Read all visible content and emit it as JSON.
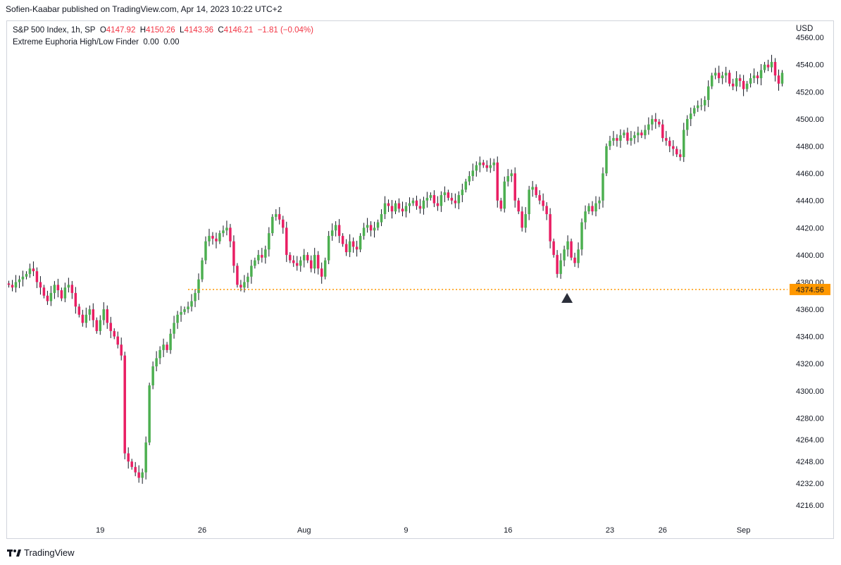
{
  "publisher_line": "Sofien-Kaabar published on TradingView.com, Apr 14, 2023 10:22 UTC+2",
  "legend": {
    "symbol": "S&P 500 Index, 1h, SP",
    "o_label": "O",
    "o_value": "4147.92",
    "h_label": "H",
    "h_value": "4150.26",
    "l_label": "L",
    "l_value": "4143.36",
    "c_label": "C",
    "c_value": "4146.21",
    "change": "−1.81 (−0.04%)",
    "indicator": "Extreme Euphoria High/Low Finder",
    "indicator_v1": "0.00",
    "indicator_v2": "0.00"
  },
  "currency": "USD",
  "brand": {
    "name": "TradingView",
    "icon": "tradingview-logo-icon"
  },
  "colors": {
    "up": "#4caf50",
    "down": "#e91e63",
    "level": "#ff9800",
    "marker": "#2a2e39"
  },
  "chart_data": {
    "type": "candlestick",
    "title": "",
    "xlabel": "",
    "ylabel": "",
    "ylim": [
      4204,
      4572
    ],
    "y_ticks": [
      4560,
      4540,
      4520,
      4500,
      4480,
      4460,
      4440,
      4420,
      4400,
      4380,
      4360,
      4340,
      4320,
      4300,
      4280,
      4264,
      4248,
      4232,
      4216
    ],
    "x_ticks": [
      {
        "label": "19",
        "index": 26
      },
      {
        "label": "26",
        "index": 55
      },
      {
        "label": "Aug",
        "index": 84
      },
      {
        "label": "9",
        "index": 113
      },
      {
        "label": "16",
        "index": 142
      },
      {
        "label": "23",
        "index": 171
      },
      {
        "label": "26",
        "index": 186
      },
      {
        "label": "Sep",
        "index": 209
      }
    ],
    "x_count": 222,
    "level_line": {
      "value": 4374.56,
      "label": "4374.56",
      "from_index": 51
    },
    "signal_marker": {
      "index": 158,
      "value": 4372,
      "shape": "triangle-up"
    },
    "closes": [
      4378,
      4376,
      4380,
      4382,
      4384,
      4386,
      4390,
      4388,
      4380,
      4376,
      4370,
      4366,
      4372,
      4378,
      4374,
      4368,
      4376,
      4378,
      4372,
      4362,
      4356,
      4350,
      4356,
      4360,
      4352,
      4344,
      4352,
      4360,
      4350,
      4344,
      4340,
      4334,
      4326,
      4254,
      4248,
      4244,
      4240,
      4236,
      4240,
      4262,
      4304,
      4318,
      4324,
      4330,
      4334,
      4330,
      4342,
      4350,
      4356,
      4358,
      4360,
      4362,
      4366,
      4372,
      4382,
      4396,
      4410,
      4414,
      4412,
      4410,
      4416,
      4418,
      4420,
      4410,
      4392,
      4378,
      4376,
      4380,
      4384,
      4392,
      4396,
      4400,
      4398,
      4404,
      4416,
      4428,
      4430,
      4426,
      4420,
      4400,
      4396,
      4394,
      4392,
      4396,
      4400,
      4396,
      4390,
      4400,
      4390,
      4384,
      4396,
      4414,
      4418,
      4422,
      4414,
      4408,
      4402,
      4410,
      4406,
      4404,
      4414,
      4420,
      4422,
      4418,
      4420,
      4424,
      4430,
      4438,
      4436,
      4432,
      4438,
      4434,
      4432,
      4436,
      4438,
      4440,
      4436,
      4434,
      4440,
      4442,
      4444,
      4438,
      4436,
      4444,
      4446,
      4442,
      4440,
      4438,
      4444,
      4448,
      4454,
      4458,
      4462,
      4466,
      4468,
      4466,
      4464,
      4466,
      4468,
      4440,
      4434,
      4454,
      4458,
      4460,
      4440,
      4432,
      4420,
      4430,
      4448,
      4450,
      4444,
      4440,
      4436,
      4430,
      4410,
      4400,
      4386,
      4396,
      4404,
      4410,
      4398,
      4394,
      4404,
      4424,
      4432,
      4436,
      4432,
      4438,
      4440,
      4460,
      4480,
      4484,
      4486,
      4484,
      4488,
      4490,
      4484,
      4486,
      4488,
      4490,
      4488,
      4492,
      4496,
      4500,
      4498,
      4496,
      4486,
      4484,
      4480,
      4478,
      4474,
      4472,
      4492,
      4500,
      4504,
      4508,
      4510,
      4510,
      4514,
      4524,
      4532,
      4534,
      4530,
      4532,
      4534,
      4526,
      4524,
      4530,
      4528,
      4522,
      4526,
      4530,
      4532,
      4530,
      4536,
      4540,
      4538,
      4542,
      4532,
      4526,
      4534
    ]
  }
}
